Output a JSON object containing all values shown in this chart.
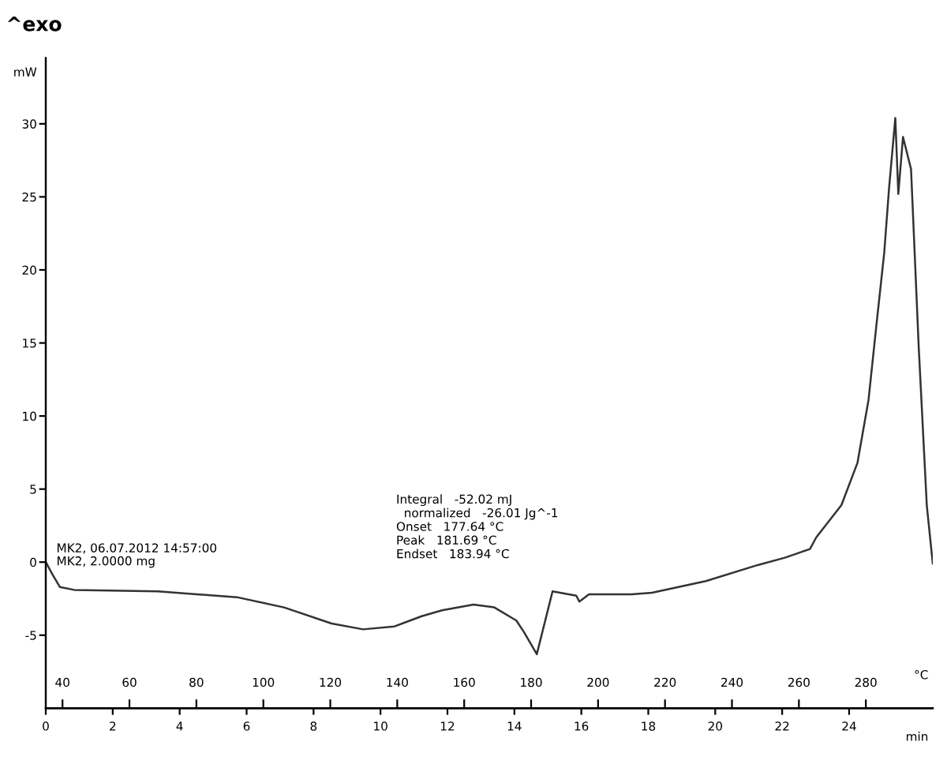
{
  "chart_data": {
    "type": "line",
    "ylabel": "mW",
    "xlabel": "min",
    "x2label": "°C",
    "annotations": [
      "^exo",
      "MK2, 06.07.2012 14:57:00",
      "MK2, 2.0000 mg",
      "Integral   -52.02 mJ",
      "  normalized   -26.01 Jg^-1",
      "Onset   177.64 °C",
      "Peak   181.69 °C",
      "Endset   183.94 °C"
    ],
    "series": [
      {
        "color": "#333333",
        "x": [
          0,
          0.19,
          0.42,
          0.85,
          3.35,
          5.71,
          7.12,
          8.54,
          9.48,
          10.42,
          11.23,
          11.84,
          12.78,
          13.4,
          14.06,
          14.29,
          14.67,
          15.14,
          15.85,
          15.94,
          16.23,
          17.5,
          18.11,
          19.72,
          21.27,
          22.08,
          22.83,
          23.02,
          23.77,
          24.25,
          24.58,
          24.81,
          25.05,
          25.19,
          25.38,
          25.47,
          25.61,
          25.85,
          26.08,
          26.32,
          26.5
        ],
        "values": [
          0,
          -0.8,
          -1.7,
          -1.9,
          -2.0,
          -2.4,
          -3.1,
          -4.2,
          -4.6,
          -4.4,
          -3.7,
          -3.3,
          -2.9,
          -3.1,
          -4.0,
          -4.8,
          -6.3,
          -2.0,
          -2.3,
          -2.7,
          -2.2,
          -2.2,
          -2.1,
          -1.3,
          -0.2,
          0.3,
          0.9,
          1.7,
          3.9,
          6.8,
          11.1,
          16.1,
          21.2,
          25.5,
          30.4,
          25.2,
          29.1,
          26.9,
          14.7,
          3.9,
          -0.1
        ]
      }
    ],
    "xlim": [
      0,
      26.5
    ],
    "xticks": [
      0,
      2,
      4,
      6,
      8,
      10,
      12,
      14,
      16,
      18,
      20,
      22,
      24
    ],
    "x2lim": [
      35,
      300
    ],
    "x2ticks": [
      40,
      60,
      80,
      100,
      120,
      140,
      160,
      180,
      200,
      220,
      240,
      260,
      280
    ],
    "ylim": [
      -10,
      34.5
    ],
    "yticks": [
      -5,
      0,
      5,
      10,
      15,
      20,
      25,
      30
    ],
    "grid": false,
    "legend": false,
    "line_style": "solid",
    "marker": "none"
  }
}
